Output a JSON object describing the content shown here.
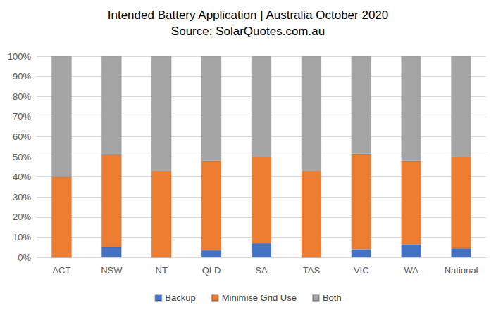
{
  "chart_data": {
    "type": "bar",
    "title": "Intended Battery Application | Australia October 2020",
    "subtitle": "Source: SolarQuotes.com.au",
    "stacked": true,
    "grid": true,
    "legend": "bottom",
    "categories": [
      "ACT",
      "NSW",
      "NT",
      "QLD",
      "SA",
      "TAS",
      "VIC",
      "WA",
      "National"
    ],
    "series": [
      {
        "name": "Backup",
        "color": "#4472c4",
        "values": [
          0,
          5,
          0,
          3.5,
          7,
          0,
          4,
          6.5,
          4.5
        ]
      },
      {
        "name": "Minimise Grid Use",
        "color": "#ed7d31",
        "values": [
          40,
          46,
          43,
          44.5,
          43,
          43,
          47.5,
          41.5,
          45.5
        ]
      },
      {
        "name": "Both",
        "color": "#a5a5a5",
        "values": [
          60,
          49,
          57,
          52,
          50,
          57,
          48.5,
          52,
          50
        ]
      }
    ],
    "ylim": [
      0,
      100
    ],
    "yticks": [
      {
        "value": 0,
        "label": "0%"
      },
      {
        "value": 10,
        "label": "10%"
      },
      {
        "value": 20,
        "label": "20%"
      },
      {
        "value": 30,
        "label": "30%"
      },
      {
        "value": 40,
        "label": "40%"
      },
      {
        "value": 50,
        "label": "50%"
      },
      {
        "value": 60,
        "label": "60%"
      },
      {
        "value": 70,
        "label": "70%"
      },
      {
        "value": 80,
        "label": "80%"
      },
      {
        "value": 90,
        "label": "90%"
      },
      {
        "value": 100,
        "label": "100%"
      }
    ]
  }
}
